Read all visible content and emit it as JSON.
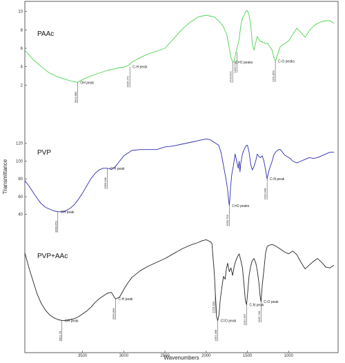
{
  "chart_data": {
    "type": "line",
    "xlabel": "Wavenumbers",
    "ylabel": "Transmittance",
    "xlim": [
      4200,
      400
    ],
    "x_ticks": [
      3500,
      3000,
      2500,
      2000,
      1500,
      1000
    ],
    "panels": [
      {
        "name": "PAAc",
        "color": "#4cd24c",
        "ylim": [
          0,
          10.5
        ],
        "y_ticks": [
          2,
          4,
          6,
          8,
          10
        ],
        "points": [
          [
            4200,
            5.8
          ],
          [
            4100,
            4.8
          ],
          [
            4000,
            4.0
          ],
          [
            3900,
            3.3
          ],
          [
            3800,
            2.9
          ],
          [
            3700,
            2.6
          ],
          [
            3620,
            2.4
          ],
          [
            3561,
            2.3
          ],
          [
            3500,
            2.6
          ],
          [
            3400,
            3.0
          ],
          [
            3300,
            3.3
          ],
          [
            3200,
            3.6
          ],
          [
            3100,
            3.8
          ],
          [
            3050,
            3.9
          ],
          [
            3000,
            3.95
          ],
          [
            2950,
            4.1
          ],
          [
            2900,
            4.5
          ],
          [
            2800,
            5.0
          ],
          [
            2700,
            5.4
          ],
          [
            2600,
            5.7
          ],
          [
            2500,
            6.0
          ],
          [
            2400,
            7.0
          ],
          [
            2300,
            8.0
          ],
          [
            2200,
            8.8
          ],
          [
            2100,
            9.4
          ],
          [
            2000,
            9.6
          ],
          [
            1900,
            9.4
          ],
          [
            1850,
            9.0
          ],
          [
            1800,
            8.5
          ],
          [
            1750,
            7.5
          ],
          [
            1720,
            6.0
          ],
          [
            1700,
            5.0
          ],
          [
            1679,
            4.5
          ],
          [
            1660,
            4.6
          ],
          [
            1640,
            5.6
          ],
          [
            1620,
            6.2
          ],
          [
            1600,
            7.0
          ],
          [
            1580,
            8.5
          ],
          [
            1560,
            9.3
          ],
          [
            1540,
            9.6
          ],
          [
            1520,
            10.0
          ],
          [
            1500,
            10.1
          ],
          [
            1480,
            9.6
          ],
          [
            1460,
            8.5
          ],
          [
            1440,
            6.5
          ],
          [
            1420,
            5.8
          ],
          [
            1400,
            6.6
          ],
          [
            1380,
            7.3
          ],
          [
            1350,
            6.8
          ],
          [
            1300,
            6.6
          ],
          [
            1250,
            6.5
          ],
          [
            1200,
            5.8
          ],
          [
            1180,
            5.0
          ],
          [
            1161,
            4.6
          ],
          [
            1140,
            5.2
          ],
          [
            1100,
            6.2
          ],
          [
            1050,
            6.5
          ],
          [
            1000,
            6.8
          ],
          [
            950,
            7.5
          ],
          [
            900,
            8.2
          ],
          [
            850,
            7.7
          ],
          [
            800,
            7.2
          ],
          [
            750,
            7.9
          ],
          [
            700,
            8.4
          ],
          [
            650,
            8.7
          ],
          [
            600,
            8.9
          ],
          [
            550,
            9.0
          ],
          [
            500,
            9.0
          ],
          [
            450,
            8.7
          ]
        ],
        "annotations": [
          {
            "label": "OH peak",
            "x": 3561,
            "y": 2.3,
            "value": "3613.880"
          },
          {
            "label": "C-H peak",
            "x": 2926,
            "y": 4.0,
            "value": "2926.271"
          },
          {
            "label": "C=O peaks",
            "x": 1679,
            "y": 4.5,
            "value": "1723.622"
          },
          {
            "label": "",
            "x": 1628,
            "y": 5.6,
            "value": "1626.720"
          },
          {
            "label": "C-O peaks",
            "x": 1161,
            "y": 4.6,
            "value": "1161.863"
          }
        ]
      },
      {
        "name": "PVP",
        "color": "#2a2ab0",
        "ylim": [
          25,
          140
        ],
        "y_ticks": [
          40,
          60,
          80,
          100,
          120
        ],
        "points": [
          [
            4200,
            78
          ],
          [
            4150,
            72
          ],
          [
            4100,
            65
          ],
          [
            4050,
            58
          ],
          [
            4000,
            52
          ],
          [
            3950,
            48
          ],
          [
            3900,
            46
          ],
          [
            3850,
            44
          ],
          [
            3800,
            43
          ],
          [
            3750,
            43
          ],
          [
            3700,
            44
          ],
          [
            3650,
            47
          ],
          [
            3600,
            51
          ],
          [
            3550,
            57
          ],
          [
            3500,
            64
          ],
          [
            3450,
            72
          ],
          [
            3400,
            80
          ],
          [
            3350,
            86
          ],
          [
            3300,
            90
          ],
          [
            3250,
            92
          ],
          [
            3200,
            92
          ],
          [
            3150,
            91
          ],
          [
            3100,
            94
          ],
          [
            3050,
            100
          ],
          [
            3000,
            106
          ],
          [
            2950,
            109
          ],
          [
            2900,
            112
          ],
          [
            2800,
            113
          ],
          [
            2700,
            113
          ],
          [
            2600,
            113
          ],
          [
            2500,
            116
          ],
          [
            2400,
            117
          ],
          [
            2300,
            119
          ],
          [
            2200,
            121
          ],
          [
            2100,
            123
          ],
          [
            2050,
            124
          ],
          [
            2000,
            125
          ],
          [
            1950,
            124
          ],
          [
            1900,
            121
          ],
          [
            1850,
            118
          ],
          [
            1820,
            110
          ],
          [
            1800,
            100
          ],
          [
            1780,
            90
          ],
          [
            1760,
            80
          ],
          [
            1740,
            68
          ],
          [
            1730,
            58
          ],
          [
            1720,
            50
          ],
          [
            1715,
            55
          ],
          [
            1705,
            70
          ],
          [
            1690,
            85
          ],
          [
            1670,
            95
          ],
          [
            1650,
            108
          ],
          [
            1630,
            100
          ],
          [
            1610,
            92
          ],
          [
            1600,
            100
          ],
          [
            1590,
            88
          ],
          [
            1580,
            98
          ],
          [
            1560,
            108
          ],
          [
            1540,
            113
          ],
          [
            1520,
            117
          ],
          [
            1500,
            118
          ],
          [
            1480,
            110
          ],
          [
            1460,
            96
          ],
          [
            1440,
            90
          ],
          [
            1420,
            94
          ],
          [
            1400,
            100
          ],
          [
            1380,
            108
          ],
          [
            1360,
            105
          ],
          [
            1340,
            104
          ],
          [
            1320,
            106
          ],
          [
            1300,
            100
          ],
          [
            1280,
            90
          ],
          [
            1261,
            80
          ],
          [
            1250,
            85
          ],
          [
            1230,
            92
          ],
          [
            1200,
            100
          ],
          [
            1180,
            107
          ],
          [
            1150,
            111
          ],
          [
            1120,
            113
          ],
          [
            1100,
            113
          ],
          [
            1050,
            107
          ],
          [
            1000,
            104
          ],
          [
            980,
            103
          ],
          [
            950,
            100
          ],
          [
            900,
            98
          ],
          [
            850,
            100
          ],
          [
            800,
            102
          ],
          [
            750,
            104
          ],
          [
            700,
            103
          ],
          [
            650,
            104
          ],
          [
            600,
            106
          ],
          [
            550,
            108
          ],
          [
            500,
            110
          ],
          [
            450,
            110
          ]
        ],
        "annotations": [
          {
            "label": "OH peak",
            "x": 3800,
            "y": 43,
            "value": "3409.053"
          },
          {
            "label": "C-H peak",
            "x": 3200,
            "y": 92,
            "value": "2956.049"
          },
          {
            "label": "C=O peaks",
            "x": 1720,
            "y": 50,
            "value": "1655.759"
          },
          {
            "label": "C-N peak",
            "x": 1261,
            "y": 80,
            "value": "1292.948"
          }
        ]
      },
      {
        "name": "PVP+AAc",
        "color": "#222222",
        "ylim": [
          0,
          10
        ],
        "y_ticks": [],
        "points": [
          [
            4200,
            8.2
          ],
          [
            4150,
            6.6
          ],
          [
            4100,
            5.2
          ],
          [
            4050,
            3.8
          ],
          [
            4000,
            2.8
          ],
          [
            3950,
            2.1
          ],
          [
            3900,
            1.6
          ],
          [
            3850,
            1.3
          ],
          [
            3800,
            1.1
          ],
          [
            3750,
            1.0
          ],
          [
            3700,
            1.0
          ],
          [
            3650,
            1.1
          ],
          [
            3600,
            1.2
          ],
          [
            3550,
            1.4
          ],
          [
            3500,
            1.7
          ],
          [
            3450,
            2.0
          ],
          [
            3400,
            2.4
          ],
          [
            3350,
            2.9
          ],
          [
            3300,
            3.3
          ],
          [
            3250,
            3.6
          ],
          [
            3200,
            3.9
          ],
          [
            3150,
            4.0
          ],
          [
            3100,
            3.3
          ],
          [
            3050,
            3.5
          ],
          [
            3000,
            4.3
          ],
          [
            2950,
            5.0
          ],
          [
            2900,
            5.6
          ],
          [
            2800,
            6.3
          ],
          [
            2700,
            6.8
          ],
          [
            2600,
            7.2
          ],
          [
            2500,
            7.6
          ],
          [
            2400,
            8.1
          ],
          [
            2300,
            8.6
          ],
          [
            2200,
            9.0
          ],
          [
            2100,
            9.3
          ],
          [
            2050,
            9.5
          ],
          [
            2000,
            9.6
          ],
          [
            1950,
            9.4
          ],
          [
            1930,
            9.2
          ],
          [
            1920,
            8.0
          ],
          [
            1910,
            7.0
          ],
          [
            1900,
            5.8
          ],
          [
            1890,
            4.0
          ],
          [
            1880,
            2.5
          ],
          [
            1875,
            1.4
          ],
          [
            1860,
            1.0
          ],
          [
            1845,
            1.6
          ],
          [
            1830,
            3.2
          ],
          [
            1810,
            4.5
          ],
          [
            1790,
            5.7
          ],
          [
            1770,
            5.4
          ],
          [
            1755,
            6.5
          ],
          [
            1740,
            7.1
          ],
          [
            1720,
            6.2
          ],
          [
            1700,
            6.6
          ],
          [
            1680,
            5.8
          ],
          [
            1660,
            6.8
          ],
          [
            1640,
            7.4
          ],
          [
            1620,
            7.8
          ],
          [
            1600,
            8.1
          ],
          [
            1580,
            7.4
          ],
          [
            1560,
            6.6
          ],
          [
            1540,
            4.7
          ],
          [
            1525,
            3.1
          ],
          [
            1510,
            2.7
          ],
          [
            1495,
            4.2
          ],
          [
            1480,
            5.8
          ],
          [
            1460,
            6.8
          ],
          [
            1440,
            7.4
          ],
          [
            1420,
            7.6
          ],
          [
            1400,
            7.2
          ],
          [
            1380,
            6.3
          ],
          [
            1360,
            5.0
          ],
          [
            1345,
            3.5
          ],
          [
            1335,
            3.0
          ],
          [
            1320,
            4.8
          ],
          [
            1300,
            6.4
          ],
          [
            1280,
            8.2
          ],
          [
            1260,
            8.9
          ],
          [
            1240,
            9.0
          ],
          [
            1200,
            9.1
          ],
          [
            1150,
            8.9
          ],
          [
            1100,
            8.6
          ],
          [
            1050,
            8.3
          ],
          [
            1000,
            8.1
          ],
          [
            950,
            8.4
          ],
          [
            900,
            8.0
          ],
          [
            850,
            7.2
          ],
          [
            800,
            6.5
          ],
          [
            750,
            6.9
          ],
          [
            700,
            7.3
          ],
          [
            650,
            7.6
          ],
          [
            600,
            7.2
          ],
          [
            550,
            6.7
          ],
          [
            500,
            6.6
          ],
          [
            450,
            6.9
          ]
        ],
        "annotations": [
          {
            "label": "OH peak",
            "x": 3750,
            "y": 1.0,
            "value": "3421.78"
          },
          {
            "label": "C-H peak",
            "x": 3100,
            "y": 3.3,
            "value": "2956.858"
          },
          {
            "label": "",
            "x": 1890,
            "y": 4.0,
            "value": "1724.393"
          },
          {
            "label": "C=O peak",
            "x": 1860,
            "y": 1.0,
            "value": "1651.468"
          },
          {
            "label": "C-N peak",
            "x": 1510,
            "y": 2.7,
            "value": "1292.997"
          },
          {
            "label": "C-O peak",
            "x": 1335,
            "y": 3.0,
            "value": "1162.728"
          }
        ]
      }
    ]
  }
}
